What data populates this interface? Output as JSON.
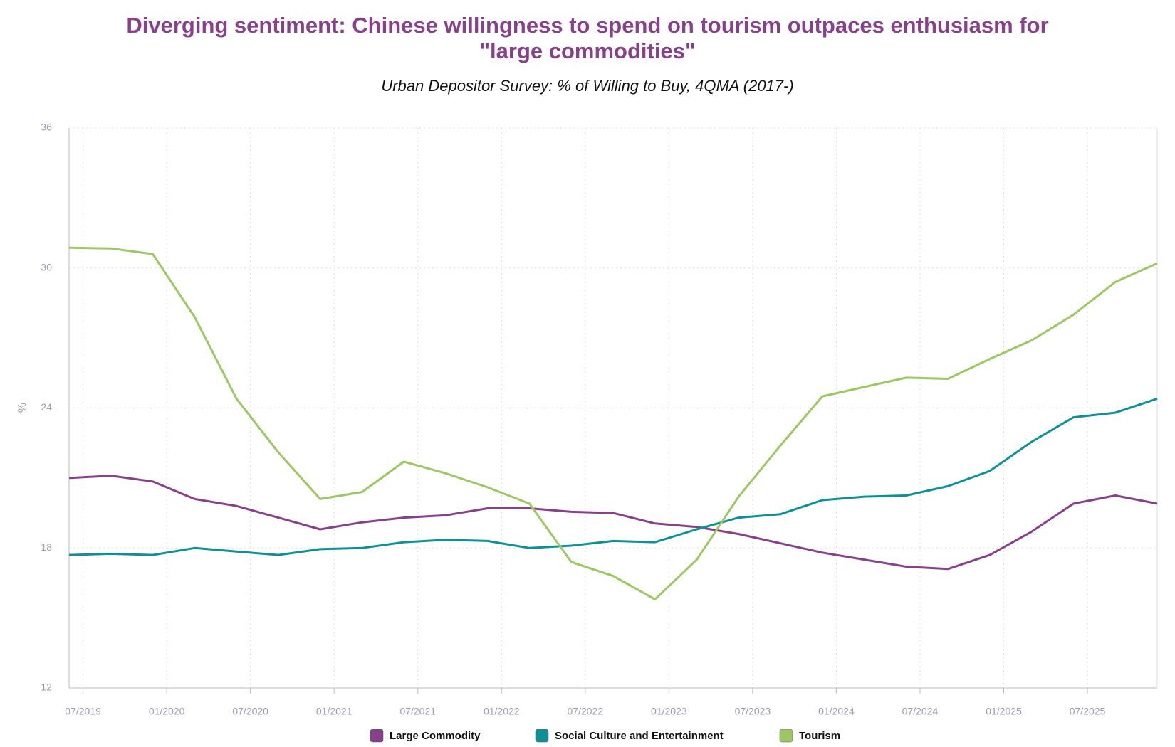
{
  "chart_data": {
    "type": "line",
    "title": "Diverging sentiment: Chinese willingness to spend on tourism outpaces enthusiasm for \"large commodities\"",
    "subtitle": "Urban Depositor Survey: % of Willing to Buy, 4QMA (2017-)",
    "y_label": "%",
    "x": [
      "06/2019",
      "09/2019",
      "12/2019",
      "03/2020",
      "06/2020",
      "09/2020",
      "12/2020",
      "03/2021",
      "06/2021",
      "09/2021",
      "12/2021",
      "03/2022",
      "06/2022",
      "09/2022",
      "12/2022",
      "03/2023",
      "06/2023",
      "09/2023",
      "12/2023",
      "03/2024",
      "06/2024",
      "09/2024",
      "12/2024",
      "03/2025",
      "06/2025",
      "09/2025",
      "12/2025"
    ],
    "xlim": [
      "06/2019",
      "12/2025"
    ],
    "xticks": [
      "07/2019",
      "01/2020",
      "07/2020",
      "01/2021",
      "07/2021",
      "01/2022",
      "07/2022",
      "01/2023",
      "07/2023",
      "01/2024",
      "07/2024",
      "01/2025",
      "07/2025"
    ],
    "ylim": [
      12,
      36
    ],
    "yticks": [
      12,
      18,
      24,
      30,
      36
    ],
    "grid": true,
    "series": [
      {
        "name": "Large Commodity",
        "color": "#86418a",
        "values": [
          21.0,
          21.1,
          20.85,
          20.1,
          19.8,
          19.3,
          18.8,
          19.1,
          19.3,
          19.4,
          19.7,
          19.7,
          19.55,
          19.5,
          19.05,
          18.9,
          18.6,
          18.2,
          17.8,
          17.5,
          17.2,
          17.1,
          17.7,
          18.7,
          19.9,
          20.25,
          19.9
        ]
      },
      {
        "name": "Social Culture and Entertainment",
        "color": "#0e9096",
        "values": [
          17.7,
          17.75,
          17.7,
          18.0,
          17.85,
          17.7,
          17.95,
          18.0,
          18.25,
          18.35,
          18.3,
          18.0,
          18.1,
          18.3,
          18.25,
          18.8,
          19.3,
          19.45,
          20.05,
          20.2,
          20.25,
          20.65,
          21.3,
          22.55,
          23.6,
          23.8,
          24.4
        ]
      },
      {
        "name": "Tourism",
        "color": "#9dc763",
        "values": [
          30.87,
          30.84,
          30.6,
          27.9,
          24.4,
          22.1,
          20.1,
          20.4,
          21.7,
          21.2,
          20.6,
          19.9,
          17.4,
          16.8,
          15.8,
          17.5,
          20.2,
          22.4,
          24.5,
          24.9,
          25.3,
          25.25,
          26.1,
          26.9,
          28.0,
          29.4,
          30.2
        ]
      }
    ]
  }
}
